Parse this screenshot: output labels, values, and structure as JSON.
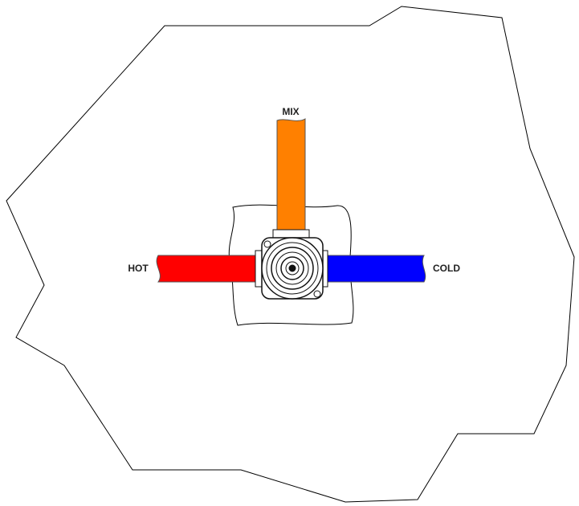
{
  "labels": {
    "mix": "MIX",
    "hot": "HOT",
    "cold": "COLD"
  }
}
